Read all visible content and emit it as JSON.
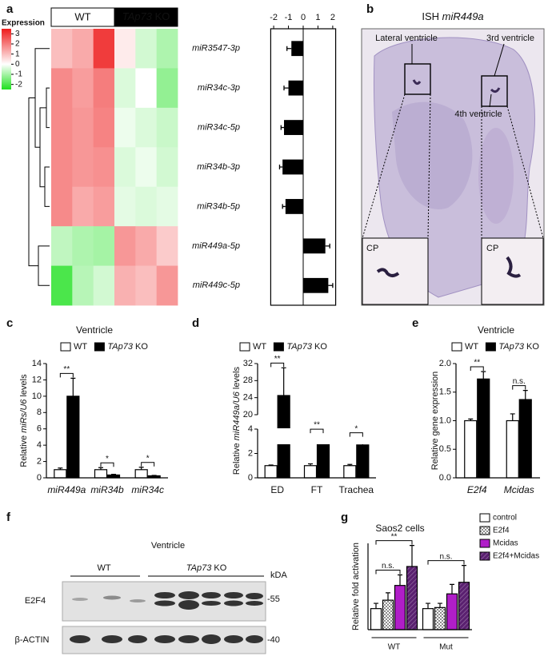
{
  "chart_data": [
    {
      "type": "heatmap",
      "panel": "a",
      "legend_title": "Expression",
      "groups": [
        "WT",
        "TAp73 KO"
      ],
      "group_colors": [
        "#ffffff",
        "#000000"
      ],
      "categories": [
        "miR3547-3p",
        "miR34c-3p",
        "miR34c-5p",
        "miR34b-3p",
        "miR34b-5p",
        "miR449a-5p",
        "miR449c-5p"
      ],
      "values": [
        [
          1.0,
          1.3,
          3.0,
          0.3,
          -0.5,
          -0.9
        ],
        [
          1.8,
          1.5,
          2.0,
          -0.4,
          0.0,
          -1.2
        ],
        [
          1.8,
          1.6,
          1.9,
          -0.2,
          -0.4,
          -0.6
        ],
        [
          1.8,
          1.6,
          1.7,
          -0.4,
          -0.2,
          -0.5
        ],
        [
          1.8,
          1.3,
          1.5,
          -0.3,
          -0.4,
          -0.3
        ],
        [
          -0.7,
          -0.9,
          -1.0,
          1.6,
          1.3,
          0.8
        ],
        [
          -2.0,
          -0.8,
          -0.5,
          1.2,
          1.0,
          1.6
        ]
      ],
      "clim": [
        -2.5,
        3.5
      ],
      "cticks": [
        3,
        2,
        1,
        0,
        -1,
        -2
      ],
      "colors": {
        "low": "#1ee01e",
        "mid": "#ffffff",
        "high": "#ee1b1b"
      }
    },
    {
      "type": "barh",
      "xlim": [
        -2.2,
        2.2
      ],
      "xticks": [
        -2,
        -1,
        0,
        1,
        2
      ],
      "values": [
        -0.8,
        -1.0,
        -1.3,
        -1.4,
        -1.2,
        1.5,
        1.7
      ],
      "errors": [
        0.3,
        0.3,
        0.2,
        0.2,
        0.2,
        0.3,
        0.3
      ],
      "color": "#000000"
    },
    {
      "type": "bar",
      "panel": "c",
      "title": "Ventricle",
      "ylabel": "Relative miRs/U6 levels",
      "category_style": "italic",
      "legend": "top",
      "categories": [
        "miR449a",
        "miR34b",
        "miR34c"
      ],
      "series": [
        {
          "name": "WT",
          "color": "#ffffff",
          "values": [
            1,
            1,
            1
          ],
          "errors": [
            0.2,
            0.25,
            0.3
          ]
        },
        {
          "name": "TAp73 KO",
          "color": "#000000",
          "values": [
            10,
            0.35,
            0.25
          ],
          "errors": [
            2.2,
            0.08,
            0.05
          ]
        }
      ],
      "ylim": [
        0,
        14
      ],
      "yticks": [
        0,
        2,
        4,
        6,
        8,
        10,
        12,
        14
      ],
      "significance": [
        [
          "**"
        ],
        [
          "*"
        ],
        [
          "*"
        ]
      ]
    },
    {
      "type": "bar",
      "panel": "d",
      "ylabel": "Relative miR449a/U6 levels",
      "legend": "top",
      "categories": [
        "ED",
        "FT",
        "Trachea"
      ],
      "series": [
        {
          "name": "WT",
          "color": "#ffffff",
          "values": [
            1,
            1,
            1
          ],
          "errors": [
            0.05,
            0.15,
            0.1
          ]
        },
        {
          "name": "TAp73 KO",
          "color": "#000000",
          "values": [
            24.5,
            3.2,
            2.7
          ],
          "errors": [
            6.5,
            0.4,
            0.6
          ]
        }
      ],
      "ylim_segments": [
        [
          0,
          4
        ],
        [
          20,
          32
        ]
      ],
      "yticks": [
        0,
        2,
        4,
        20,
        24,
        28,
        32
      ],
      "significance": [
        [
          "**"
        ],
        [
          "**"
        ],
        [
          "*"
        ]
      ]
    },
    {
      "type": "bar",
      "panel": "e",
      "title": "Ventricle",
      "ylabel": "Relative gene expression",
      "category_style": "italic",
      "legend": "top",
      "categories": [
        "E2f4",
        "Mcidas"
      ],
      "series": [
        {
          "name": "WT",
          "color": "#ffffff",
          "values": [
            1.0,
            1.0
          ],
          "errors": [
            0.03,
            0.12
          ]
        },
        {
          "name": "TAp73 KO",
          "color": "#000000",
          "values": [
            1.73,
            1.37
          ],
          "errors": [
            0.13,
            0.16
          ]
        }
      ],
      "ylim": [
        0,
        2
      ],
      "yticks": [
        {
          "value": 0,
          "label": "0.0"
        },
        0.5,
        {
          "value": 1,
          "label": "1.0"
        },
        1.5,
        {
          "value": 2,
          "label": "2.0"
        }
      ],
      "significance": [
        [
          "**"
        ],
        [
          "n.s."
        ]
      ]
    },
    {
      "type": "bar",
      "panel": "g",
      "title": "Saos2 cells",
      "ylabel": "Relative fold activation",
      "category_style": "underline",
      "legend": "right",
      "categories": [
        "WT",
        "Mut"
      ],
      "series": [
        {
          "name": "control",
          "color": "#ffffff",
          "values": [
            1.0,
            1.0
          ],
          "errors": [
            0.25,
            0.25
          ]
        },
        {
          "name": "E2f4",
          "color": "#8c8c8c",
          "pattern": "checker",
          "values": [
            1.4,
            1.05
          ],
          "errors": [
            0.35,
            0.2
          ]
        },
        {
          "name": "Mcidas",
          "color": "#b01ec8",
          "values": [
            2.1,
            1.7
          ],
          "errors": [
            0.5,
            0.45
          ]
        },
        {
          "name": "E2f4+Mcidas",
          "color": "#5a2070",
          "pattern": "hatch",
          "values": [
            3.0,
            2.25
          ],
          "errors": [
            1.0,
            0.8
          ]
        }
      ],
      "ylim": [
        0,
        4.1
      ],
      "significance": [
        [
          "**",
          "n.s."
        ],
        [
          "n.s."
        ]
      ]
    }
  ],
  "ish": {
    "panel": "b",
    "title": "ISH miR449a",
    "labels": [
      "Lateral ventricle",
      "3rd ventricle",
      "4th ventricle"
    ],
    "insets": [
      "CP",
      "CP"
    ]
  },
  "blot": {
    "panel": "f",
    "title": "Ventricle",
    "groups": [
      "WT",
      "TAp73 KO"
    ],
    "unit": "kDA",
    "rows": [
      {
        "name": "E2F4",
        "marker": "-55"
      },
      {
        "name": "β-ACTIN",
        "marker": "-40"
      }
    ]
  }
}
